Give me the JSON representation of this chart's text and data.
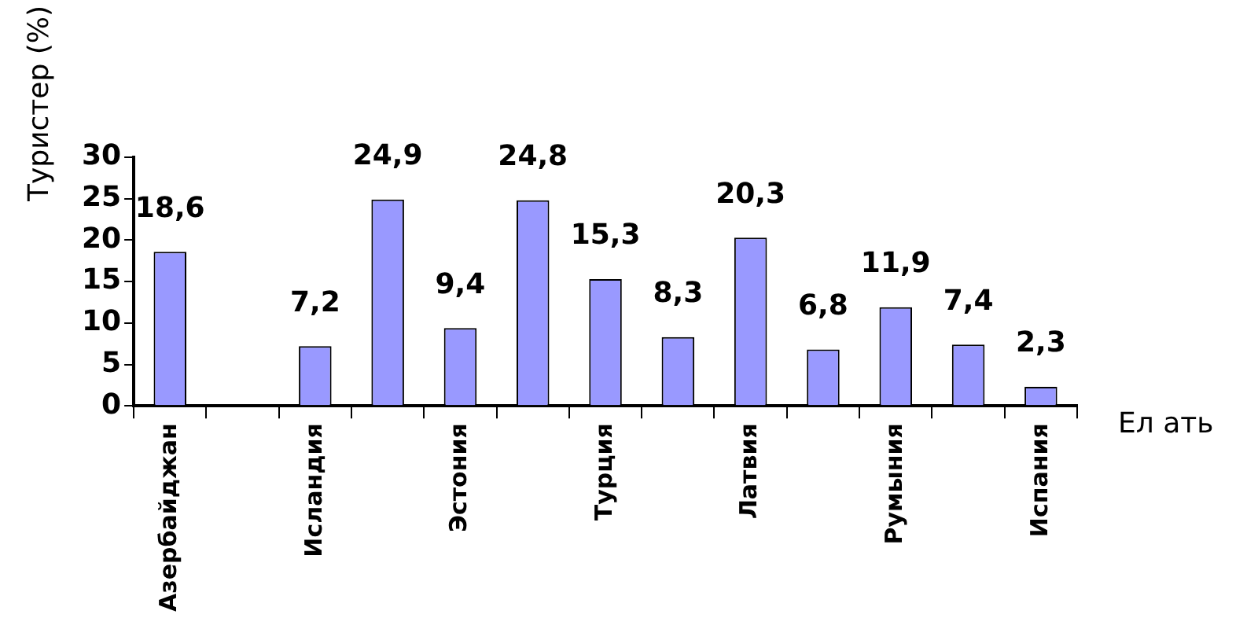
{
  "chart_data": {
    "type": "bar",
    "xlabel": "Ел ать",
    "ylabel": "Туристер (%)",
    "categories": [
      "Азербайджан",
      null,
      "Исландия",
      null,
      "Эстония",
      null,
      "Турция",
      null,
      "Латвия",
      null,
      "Румыния",
      null,
      "Испания"
    ],
    "values": [
      18.6,
      null,
      7.2,
      24.9,
      9.4,
      24.8,
      15.3,
      8.3,
      20.3,
      6.8,
      11.9,
      7.4,
      2.3
    ],
    "value_labels": [
      "18,6",
      null,
      "7,2",
      "24,9",
      "9,4",
      "24,8",
      "15,3",
      "8,3",
      "20,3",
      "6,8",
      "11,9",
      "7,4",
      "2,3"
    ],
    "color": "#9999ff",
    "ylim": [
      0,
      30
    ],
    "yticks": [
      0,
      5,
      10,
      15,
      20,
      25,
      30
    ],
    "grid": false,
    "legend": false
  }
}
